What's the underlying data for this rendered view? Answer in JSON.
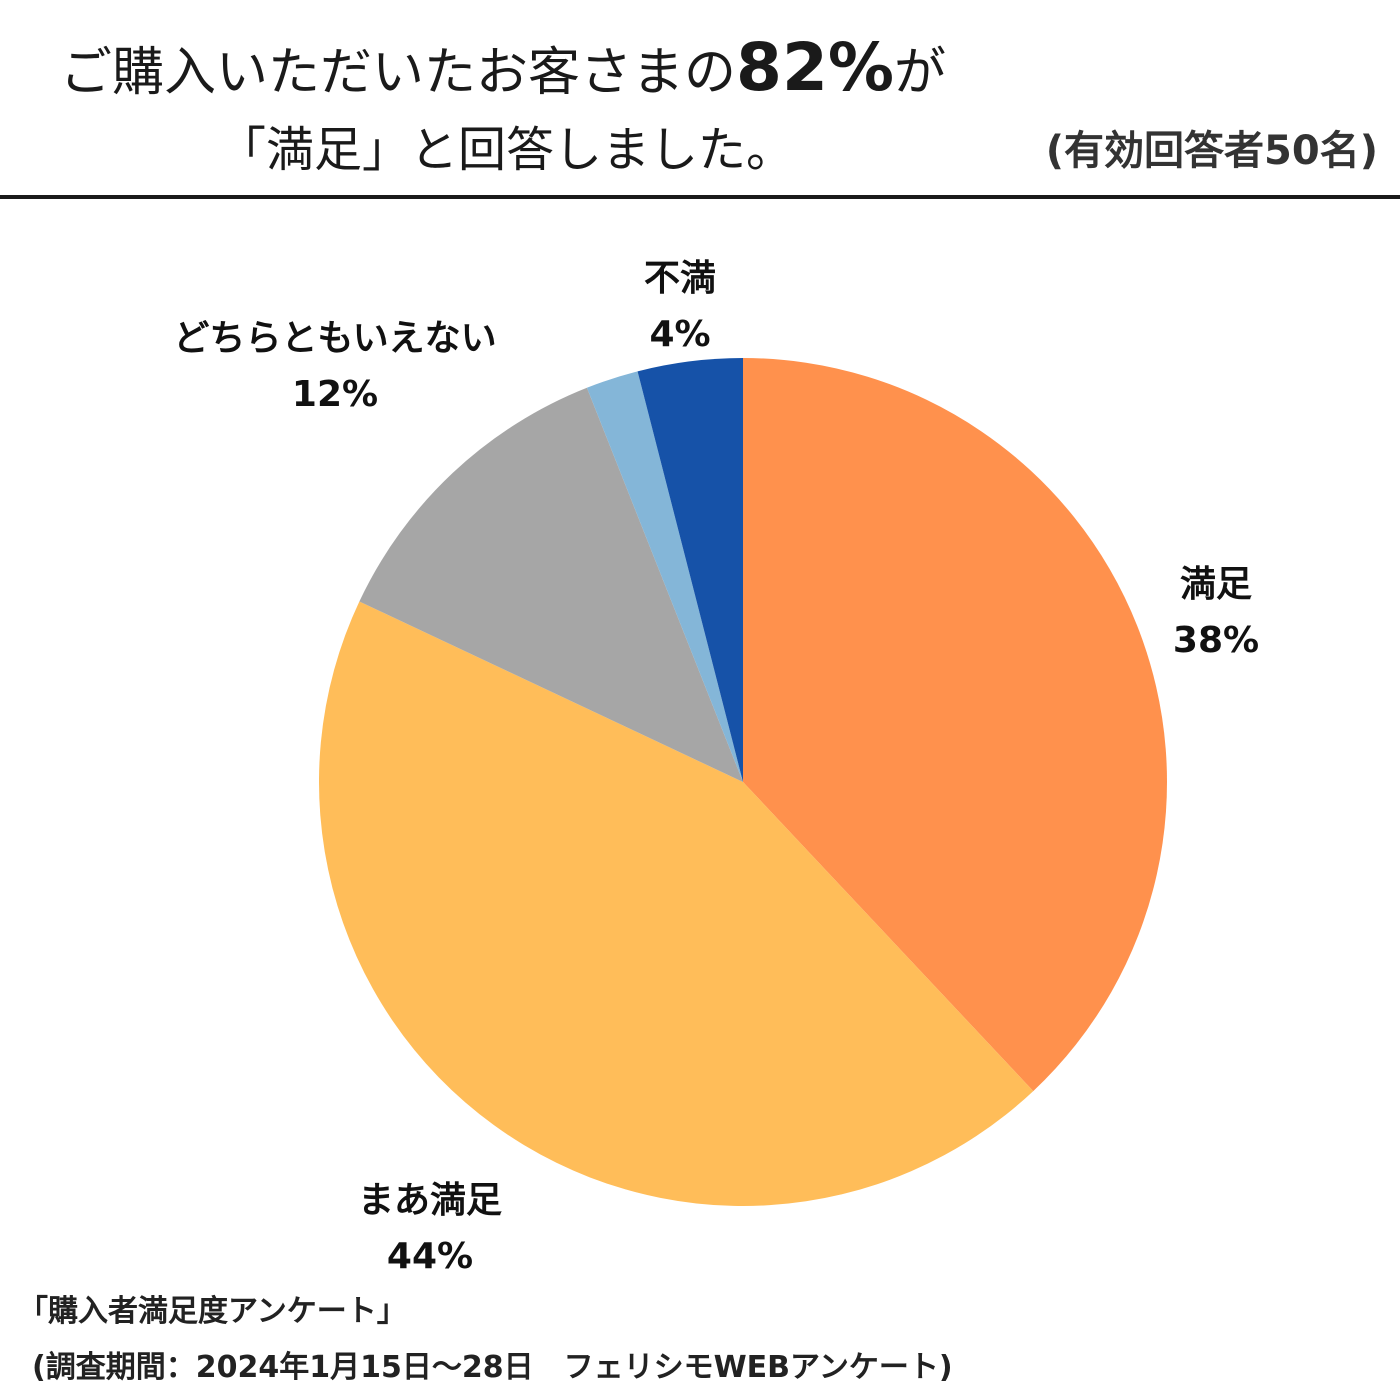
{
  "header": {
    "headline_part1": "ご購入いただいたお客さまの",
    "headline_highlight": "82%",
    "headline_part2": "が",
    "headline_line2": "「満足」と回答しました。",
    "respondents": "(有効回答者50名)"
  },
  "chart_data": {
    "type": "pie",
    "start_angle_deg": 0,
    "direction": "clockwise",
    "slices": [
      {
        "label": "満足",
        "value": 38,
        "value_label": "38%",
        "color": "#FF914D",
        "show_label": true
      },
      {
        "label": "まあ満足",
        "value": 44,
        "value_label": "44%",
        "color": "#FFBD59",
        "show_label": true
      },
      {
        "label": "どちらともいえない",
        "value": 12,
        "value_label": "12%",
        "color": "#A6A6A6",
        "show_label": true
      },
      {
        "label": "",
        "value": 2,
        "value_label": "",
        "color": "#84B6D8",
        "show_label": false
      },
      {
        "label": "不満",
        "value": 4,
        "value_label": "4%",
        "color": "#1652A8",
        "show_label": true
      }
    ]
  },
  "footer": {
    "survey_name": "「購入者満足度アンケート」",
    "survey_period": "(調査期間：2024年1月15日～28日　フェリシモWEBアンケート)"
  }
}
